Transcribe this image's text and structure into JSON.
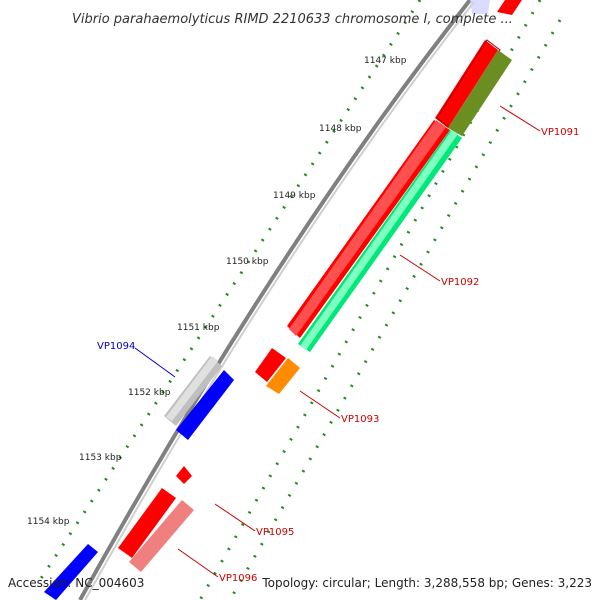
{
  "title": "Vibrio parahaemolyticus RIMD 2210633 chromosome I, complete ...",
  "kbp_labels": [
    "1147 kbp",
    "1148 kbp",
    "1149 kbp",
    "1150 kbp",
    "1151 kbp",
    "1152 kbp",
    "1153 kbp",
    "1154 kbp"
  ],
  "genes": [
    {
      "id": "VP1091",
      "color": "#cc0000"
    },
    {
      "id": "VP1092",
      "color": "#cc0000"
    },
    {
      "id": "VP1093",
      "color": "#cc0000"
    },
    {
      "id": "VP1094",
      "color": "#0000cc"
    },
    {
      "id": "VP1095",
      "color": "#cc0000"
    },
    {
      "id": "VP1096",
      "color": "#cc0000"
    }
  ],
  "feature_colors": {
    "red": "#ff0000",
    "green": "#00e87a",
    "olive": "#6b8e23",
    "orange": "#ff8c00",
    "blue": "#0000ff",
    "gray": "#bfbfbf",
    "pink": "#f08080",
    "backbone": "#808080",
    "tick_dots": "#228b22"
  },
  "footer": {
    "accession": "Accession: NC_004603",
    "summary": "Topology: circular; Length: 3,288,558 bp; Genes: 3,223"
  }
}
